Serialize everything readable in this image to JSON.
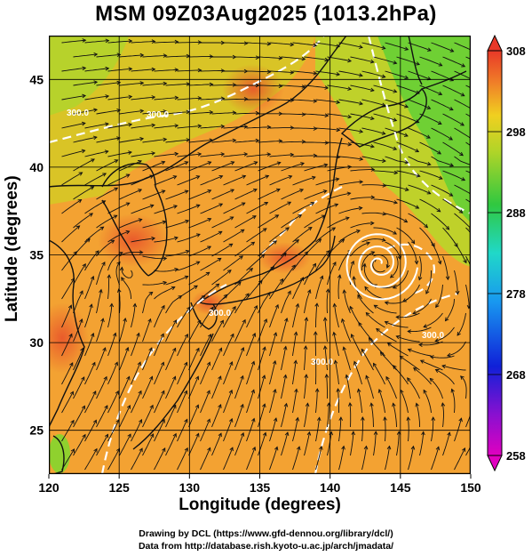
{
  "title": "MSM 09Z03Aug2025 (1013.2hPa)",
  "axes": {
    "xlabel": "Longitude (degrees)",
    "ylabel": "Latitude  (degrees)",
    "xticks": [
      "120",
      "125",
      "130",
      "135",
      "140",
      "145",
      "150"
    ],
    "yticks": [
      "45",
      "40",
      "35",
      "30",
      "25"
    ],
    "xlim": [
      120,
      150
    ],
    "ylim": [
      22.5,
      47.5
    ]
  },
  "colorbar": {
    "ticks": [
      "308",
      "298",
      "288",
      "278",
      "268",
      "258"
    ],
    "range": [
      258,
      308
    ]
  },
  "credits": {
    "line1": "Drawing by DCL (https://www.gfd-dennou.org/library/dcl/)",
    "line2": "Data from http://database.rish.kyoto-u.ac.jp/arch/jmadata/"
  },
  "map": {
    "contour_labels": [
      "300.0",
      "300.0",
      "300.0",
      "300.0",
      "300.0"
    ],
    "low_center": {
      "lon": 143.5,
      "lat": 34.5
    }
  },
  "colors": {
    "warm": "#f5a031",
    "hot": "#e8532a",
    "mild": "#e5c024",
    "cool": "#9ad52a",
    "green": "#3ec83a"
  }
}
